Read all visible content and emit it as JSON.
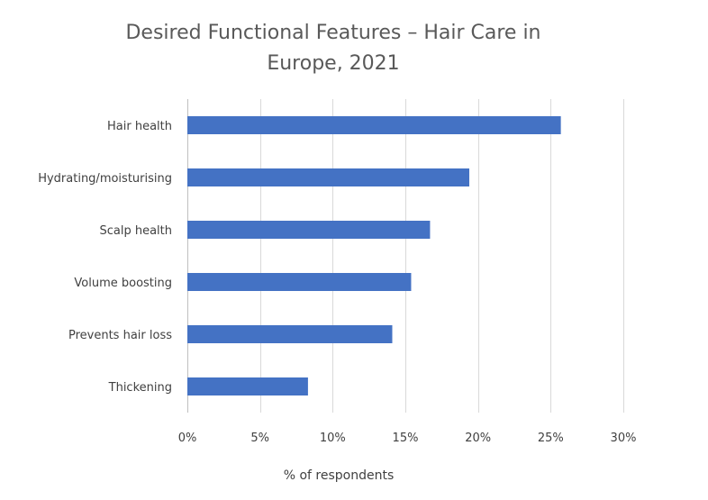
{
  "chart_data": {
    "type": "bar",
    "orientation": "horizontal",
    "title_lines": [
      "Desired Functional Features – Hair Care in",
      "Europe, 2021"
    ],
    "categories": [
      "Hair health",
      "Hydrating/moisturising",
      "Scalp health",
      "Volume boosting",
      "Prevents hair loss",
      "Thickening"
    ],
    "values": [
      25.7,
      19.4,
      16.7,
      15.4,
      14.1,
      8.3
    ],
    "unit": "%",
    "xlabel": "% of respondents",
    "xlim": [
      0,
      30
    ],
    "xticks": [
      0,
      5,
      10,
      15,
      20,
      25,
      30
    ],
    "tick_labels": [
      "0%",
      "5%",
      "10%",
      "15%",
      "20%",
      "25%",
      "30%"
    ],
    "grid": true,
    "legend": "none",
    "colors": {
      "bar": "#4472C4",
      "grid": "#D9D9D9",
      "text": "#404040",
      "title": "#595959"
    }
  }
}
